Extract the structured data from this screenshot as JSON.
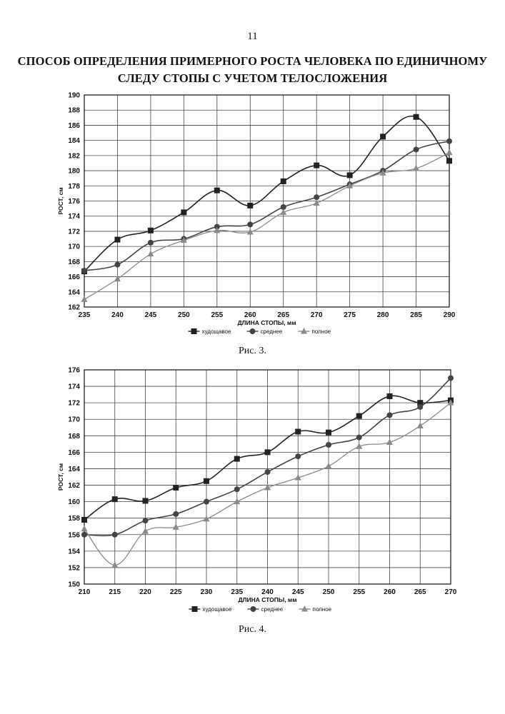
{
  "page_number": "11",
  "title": {
    "line1": "СПОСОБ ОПРЕДЕЛЕНИЯ ПРИМЕРНОГО РОСТА ЧЕЛОВЕКА ПО ЕДИНИЧНОМУ",
    "line2": "СЛЕДУ СТОПЫ С УЧЕТОМ ТЕЛОСЛОЖЕНИЯ"
  },
  "captions": [
    "Рис. 3.",
    "Рис. 4."
  ],
  "chart_data": [
    {
      "type": "line",
      "xlabel": "ДЛИНА СТОПЫ, мм",
      "ylabel": "РОСТ, см",
      "x": [
        235,
        240,
        245,
        250,
        255,
        260,
        265,
        270,
        275,
        280,
        285,
        290
      ],
      "xlim": [
        235,
        290
      ],
      "ylim": [
        162,
        190
      ],
      "ytick_step": 2,
      "grid": true,
      "legend_position": "bottom",
      "series": [
        {
          "name": "худощавое",
          "marker": "square",
          "color": "#222222",
          "values": [
            166.7,
            170.9,
            172.1,
            174.5,
            177.4,
            175.4,
            178.6,
            180.7,
            179.4,
            184.5,
            187.1,
            181.3
          ]
        },
        {
          "name": "среднее",
          "marker": "circle",
          "color": "#444444",
          "values": [
            166.8,
            167.6,
            170.5,
            171.0,
            172.6,
            172.9,
            175.2,
            176.5,
            178.2,
            180.0,
            182.8,
            183.9
          ]
        },
        {
          "name": "полное",
          "marker": "triangle",
          "color": "#8a8a8a",
          "values": [
            163.0,
            165.7,
            169.0,
            170.8,
            172.1,
            171.9,
            174.5,
            175.7,
            178.0,
            179.7,
            180.3,
            182.4
          ]
        }
      ]
    },
    {
      "type": "line",
      "xlabel": "ДЛИНА СТОПЫ, мм",
      "ylabel": "РОСТ, см",
      "x": [
        210,
        215,
        220,
        225,
        230,
        235,
        240,
        245,
        250,
        255,
        260,
        265,
        270
      ],
      "xlim": [
        210,
        270
      ],
      "ylim": [
        150,
        176
      ],
      "ytick_step": 2,
      "grid": true,
      "legend_position": "bottom",
      "series": [
        {
          "name": "худощавое",
          "marker": "square",
          "color": "#222222",
          "values": [
            157.8,
            160.3,
            160.1,
            161.7,
            162.5,
            165.2,
            166.0,
            168.5,
            168.4,
            170.4,
            172.8,
            172.0,
            172.3
          ]
        },
        {
          "name": "среднее",
          "marker": "circle",
          "color": "#444444",
          "values": [
            156.0,
            156.0,
            157.7,
            158.5,
            160.0,
            161.5,
            163.6,
            165.5,
            166.9,
            167.8,
            170.5,
            171.5,
            175.0
          ]
        },
        {
          "name": "полное",
          "marker": "triangle",
          "color": "#8a8a8a",
          "values": [
            156.7,
            152.3,
            156.4,
            156.9,
            157.9,
            160.0,
            161.7,
            162.9,
            164.3,
            166.7,
            167.2,
            169.2,
            172.0
          ]
        }
      ]
    }
  ]
}
